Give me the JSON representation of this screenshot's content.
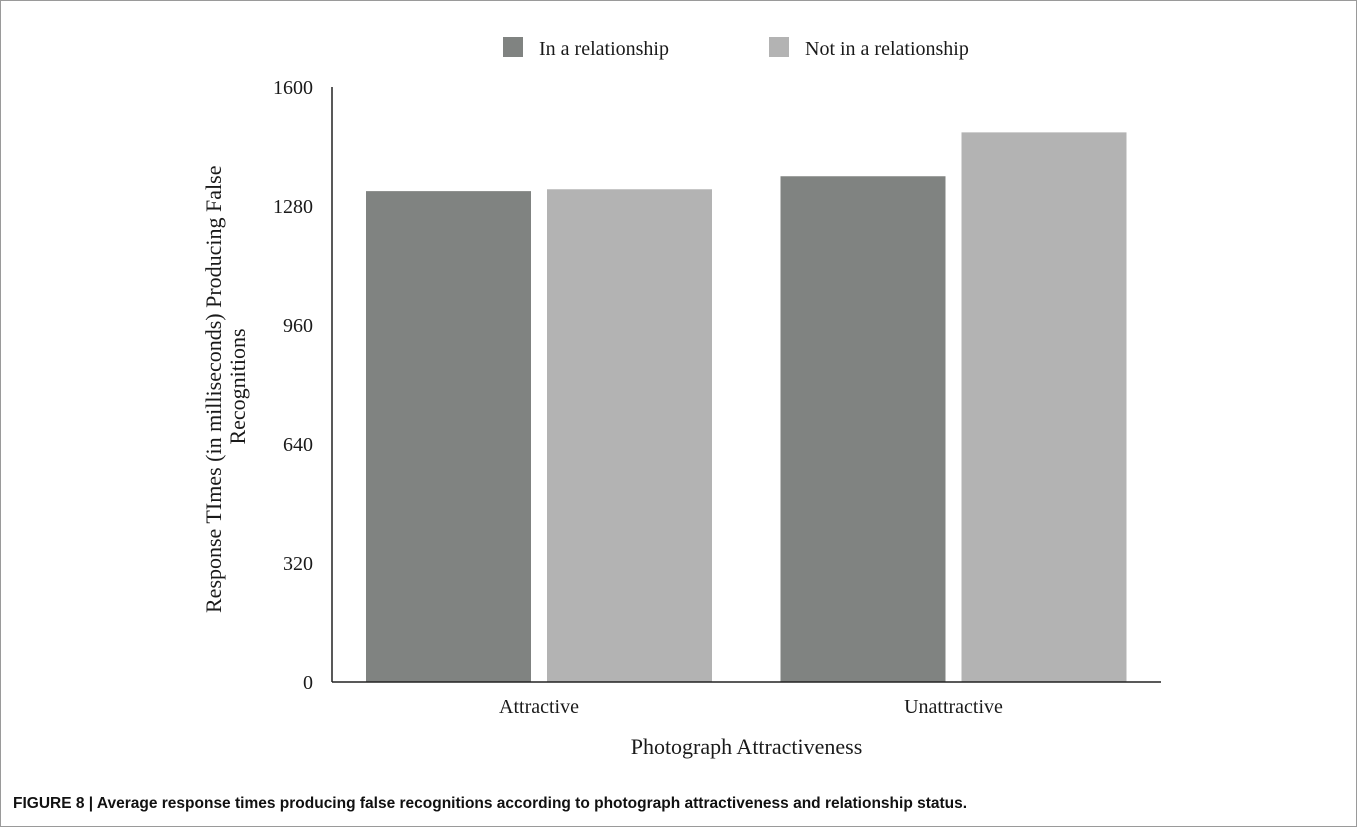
{
  "caption": "FIGURE 8 | Average response times producing false recognitions according to photograph attractiveness and relationship status.",
  "chart_data": {
    "type": "bar",
    "categories": [
      "Attractive",
      "Unattractive"
    ],
    "series": [
      {
        "name": "In a relationship",
        "values": [
          1320,
          1360
        ],
        "color": "#808381"
      },
      {
        "name": "Not in a relationship",
        "values": [
          1325,
          1478
        ],
        "color": "#b3b3b3"
      }
    ],
    "xlabel": "Photograph Attractiveness",
    "ylabel_lines": [
      "Response TImes (in milliseconds) Producing False",
      "Recognitions"
    ],
    "ylim": [
      0,
      1600
    ],
    "yticks": [
      0,
      320,
      640,
      960,
      1280,
      1600
    ],
    "legend_position": "top",
    "grid": false
  }
}
